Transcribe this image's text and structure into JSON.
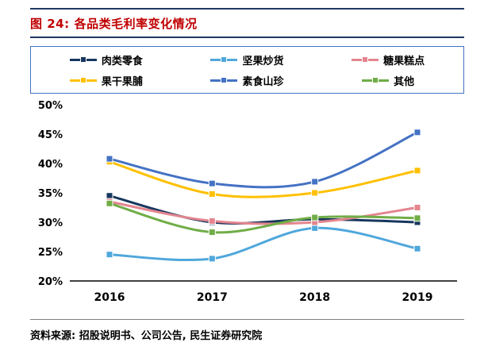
{
  "header": {
    "figure_label": "图 24:",
    "title": "各品类毛利率变化情况"
  },
  "footer": {
    "source": "资料来源: 招股说明书、公司公告, 民生证券研究院"
  },
  "colors": {
    "rule_navy": "#1F3864",
    "title_red": "#C00000",
    "legend_border": "#4472C4"
  },
  "chart_data": {
    "type": "line",
    "title": "各品类毛利率变化情况",
    "x": [
      "2016",
      "2017",
      "2018",
      "2019"
    ],
    "series": [
      {
        "name": "肉类零食",
        "color": "#17375E",
        "values": [
          34.5,
          30.0,
          30.5,
          30.0
        ]
      },
      {
        "name": "坚果炒货",
        "color": "#4FA7DC",
        "values": [
          24.5,
          23.8,
          29.0,
          25.5
        ]
      },
      {
        "name": "糖果糕点",
        "color": "#E4858F",
        "values": [
          33.5,
          30.2,
          30.0,
          32.5
        ]
      },
      {
        "name": "果干果脯",
        "color": "#FFC000",
        "values": [
          40.3,
          34.8,
          35.0,
          38.8
        ]
      },
      {
        "name": "素食山珍",
        "color": "#4472C4",
        "values": [
          40.8,
          36.6,
          36.9,
          45.3
        ]
      },
      {
        "name": "其他",
        "color": "#70AD47",
        "values": [
          33.2,
          28.3,
          30.8,
          30.7
        ]
      }
    ],
    "ylim": [
      20,
      50
    ],
    "ytick_step": 5,
    "ytick_suffix": "%",
    "xlabel": "",
    "ylabel": "",
    "grid": false,
    "legend_position": "top"
  }
}
